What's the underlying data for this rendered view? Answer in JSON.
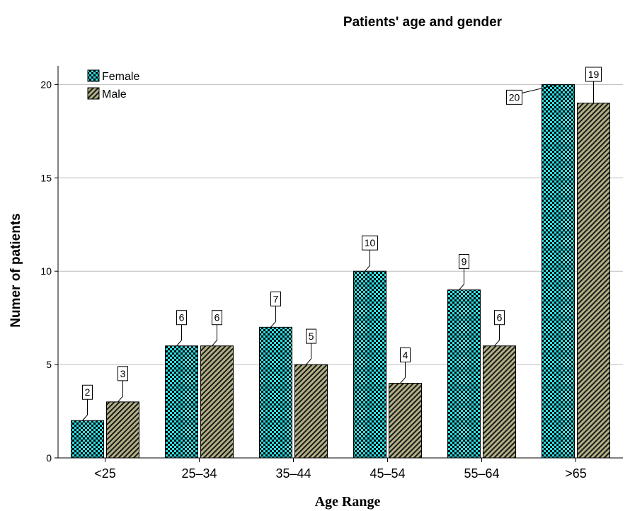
{
  "chart_data": {
    "type": "bar",
    "title": "Patients' age and gender",
    "xlabel": "Age Range",
    "ylabel": "Numer of patients",
    "categories": [
      "<25",
      "25–34",
      "35–44",
      "45–54",
      "55–64",
      ">65"
    ],
    "series": [
      {
        "name": "Female",
        "values": [
          2,
          6,
          7,
          10,
          9,
          20
        ],
        "color": "#2fe0e4"
      },
      {
        "name": "Male",
        "values": [
          3,
          6,
          5,
          4,
          6,
          19
        ],
        "color": "#b3b086"
      }
    ],
    "ylim": [
      0,
      21
    ],
    "yticks": [
      0,
      5,
      10,
      15,
      20
    ],
    "grid": true,
    "legend": "top-left"
  }
}
